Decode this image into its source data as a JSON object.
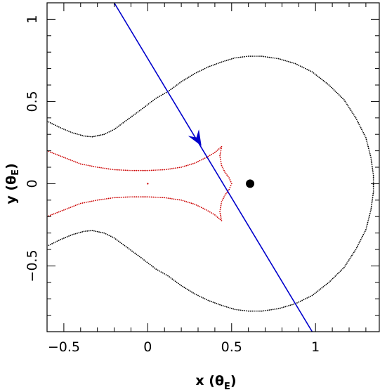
{
  "chart_data": {
    "type": "scatter",
    "title": "",
    "xlabel": {
      "main": "x (θ",
      "sub": "E",
      "close": ")"
    },
    "ylabel": {
      "main": "y (θ",
      "sub": "E",
      "close": ")"
    },
    "xlim": [
      -0.6,
      1.38
    ],
    "ylim": [
      -0.9,
      1.1
    ],
    "x_ticks": [
      {
        "value": -0.5,
        "label": "−0.5"
      },
      {
        "value": 0,
        "label": "0"
      },
      {
        "value": 0.5,
        "label": "0.5"
      },
      {
        "value": 1,
        "label": "1"
      }
    ],
    "y_ticks": [
      {
        "value": -0.5,
        "label": "−0.5"
      },
      {
        "value": 0,
        "label": "0"
      },
      {
        "value": 0.5,
        "label": "0.5"
      },
      {
        "value": 1,
        "label": "1"
      }
    ],
    "grid": false,
    "legend": "none",
    "series": [
      {
        "kind": "critical_curve",
        "color": "#000000",
        "points": [
          [
            -0.6,
            0.38
          ],
          [
            -0.52,
            0.34
          ],
          [
            -0.45,
            0.31
          ],
          [
            -0.38,
            0.29
          ],
          [
            -0.33,
            0.285
          ],
          [
            -0.26,
            0.3
          ],
          [
            -0.2,
            0.33
          ],
          [
            -0.12,
            0.39
          ],
          [
            -0.04,
            0.45
          ],
          [
            0.05,
            0.52
          ],
          [
            0.12,
            0.56
          ],
          [
            0.2,
            0.62
          ],
          [
            0.28,
            0.67
          ],
          [
            0.36,
            0.71
          ],
          [
            0.44,
            0.74
          ],
          [
            0.52,
            0.765
          ],
          [
            0.6,
            0.775
          ],
          [
            0.68,
            0.775
          ],
          [
            0.78,
            0.76
          ],
          [
            0.88,
            0.73
          ],
          [
            0.98,
            0.68
          ],
          [
            1.08,
            0.6
          ],
          [
            1.17,
            0.51
          ],
          [
            1.24,
            0.4
          ],
          [
            1.3,
            0.28
          ],
          [
            1.33,
            0.16
          ],
          [
            1.345,
            0.05
          ],
          [
            1.345,
            -0.05
          ],
          [
            1.33,
            -0.16
          ],
          [
            1.3,
            -0.28
          ],
          [
            1.24,
            -0.4
          ],
          [
            1.17,
            -0.51
          ],
          [
            1.08,
            -0.6
          ],
          [
            0.98,
            -0.68
          ],
          [
            0.88,
            -0.73
          ],
          [
            0.78,
            -0.76
          ],
          [
            0.68,
            -0.775
          ],
          [
            0.6,
            -0.775
          ],
          [
            0.52,
            -0.765
          ],
          [
            0.44,
            -0.74
          ],
          [
            0.36,
            -0.71
          ],
          [
            0.28,
            -0.67
          ],
          [
            0.2,
            -0.62
          ],
          [
            0.12,
            -0.56
          ],
          [
            0.05,
            -0.52
          ],
          [
            -0.04,
            -0.45
          ],
          [
            -0.12,
            -0.39
          ],
          [
            -0.2,
            -0.33
          ],
          [
            -0.26,
            -0.3
          ],
          [
            -0.33,
            -0.285
          ],
          [
            -0.38,
            -0.29
          ],
          [
            -0.45,
            -0.31
          ],
          [
            -0.52,
            -0.34
          ],
          [
            -0.6,
            -0.38
          ]
        ]
      },
      {
        "kind": "caustic",
        "color": "#cc0000",
        "points": [
          [
            -0.6,
            0.2
          ],
          [
            -0.5,
            0.16
          ],
          [
            -0.4,
            0.12
          ],
          [
            -0.3,
            0.1
          ],
          [
            -0.2,
            0.085
          ],
          [
            -0.1,
            0.08
          ],
          [
            0.0,
            0.08
          ],
          [
            0.1,
            0.085
          ],
          [
            0.2,
            0.1
          ],
          [
            0.28,
            0.125
          ],
          [
            0.35,
            0.16
          ],
          [
            0.4,
            0.19
          ],
          [
            0.44,
            0.225
          ],
          [
            0.43,
            0.17
          ],
          [
            0.44,
            0.11
          ],
          [
            0.46,
            0.07
          ],
          [
            0.485,
            0.035
          ],
          [
            0.5,
            0.0
          ],
          [
            0.485,
            -0.035
          ],
          [
            0.46,
            -0.07
          ],
          [
            0.44,
            -0.11
          ],
          [
            0.43,
            -0.17
          ],
          [
            0.44,
            -0.225
          ],
          [
            0.4,
            -0.19
          ],
          [
            0.35,
            -0.16
          ],
          [
            0.28,
            -0.125
          ],
          [
            0.2,
            -0.1
          ],
          [
            0.1,
            -0.085
          ],
          [
            0.0,
            -0.08
          ],
          [
            -0.1,
            -0.08
          ],
          [
            -0.2,
            -0.085
          ],
          [
            -0.3,
            -0.1
          ],
          [
            -0.4,
            -0.12
          ],
          [
            -0.5,
            -0.16
          ],
          [
            -0.6,
            -0.2
          ]
        ]
      },
      {
        "kind": "source_trajectory",
        "color": "#0000cc",
        "points": [
          [
            -0.2,
            1.1
          ],
          [
            0.98,
            -0.9
          ]
        ],
        "arrow_at": [
          0.32,
          0.23
        ]
      }
    ],
    "markers": [
      {
        "kind": "lens",
        "x": 0.61,
        "y": 0.0,
        "color": "#000000"
      },
      {
        "kind": "lens",
        "x": 0.0,
        "y": 0.0,
        "color": "#cc0000"
      }
    ]
  }
}
